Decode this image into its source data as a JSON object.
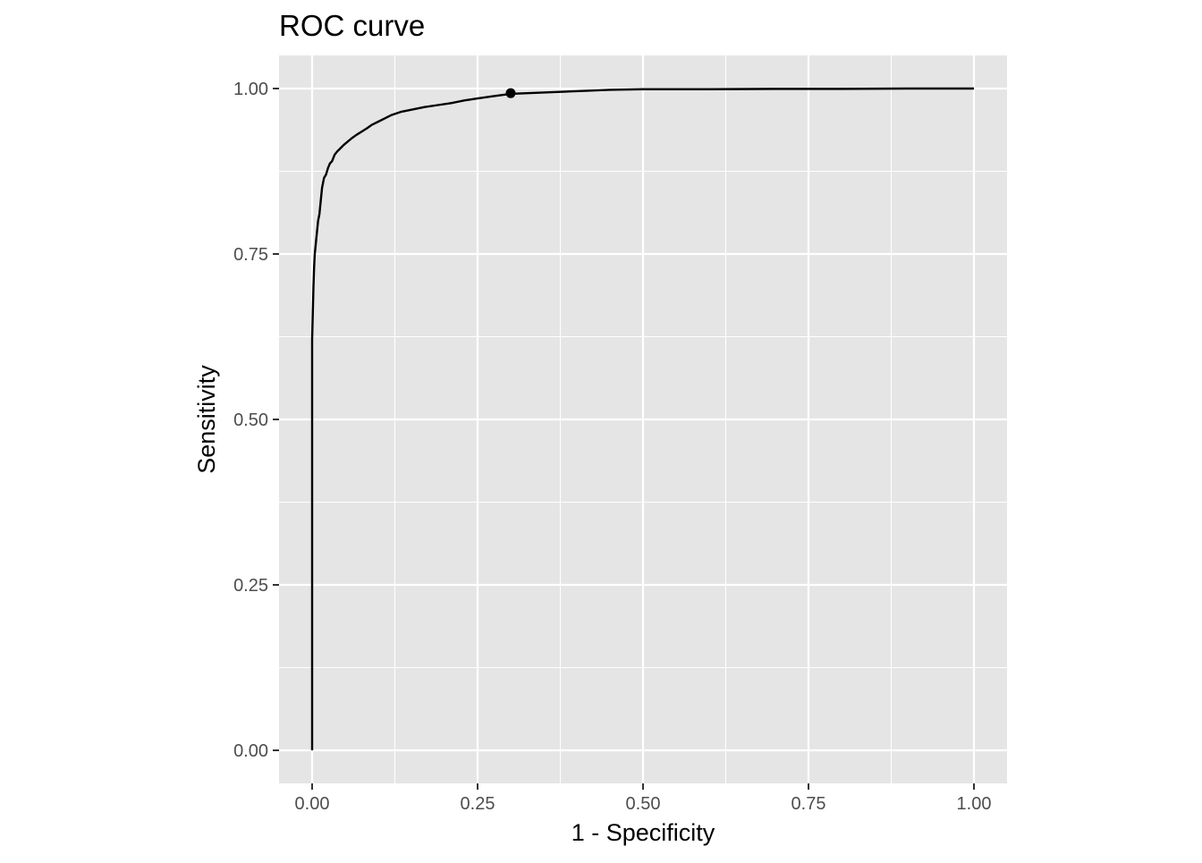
{
  "chart_data": {
    "type": "line",
    "title": "ROC curve",
    "xlabel": "1 - Specificity",
    "ylabel": "Sensitivity",
    "xlim": [
      -0.05,
      1.05
    ],
    "ylim": [
      -0.05,
      1.05
    ],
    "x_ticks": [
      0,
      0.25,
      0.5,
      0.75,
      1
    ],
    "x_tick_labels": [
      "0.00",
      "0.25",
      "0.50",
      "0.75",
      "1.00"
    ],
    "y_ticks": [
      0,
      0.25,
      0.5,
      0.75,
      1
    ],
    "y_tick_labels": [
      "0.00",
      "0.25",
      "0.50",
      "0.75",
      "1.00"
    ],
    "minor_x": [
      0.125,
      0.375,
      0.625,
      0.875
    ],
    "minor_y": [
      0.125,
      0.375,
      0.625,
      0.875
    ],
    "grid": true,
    "panel_background": "#e5e5e5",
    "grid_color": "#ffffff",
    "line_color": "#000000",
    "series": [
      {
        "x": [
          0,
          0,
          0.001,
          0.002,
          0.003,
          0.004,
          0.005,
          0.007,
          0.009,
          0.011,
          0.013,
          0.015,
          0.018,
          0.021,
          0.024,
          0.027,
          0.03,
          0.034,
          0.038,
          0.043,
          0.048,
          0.054,
          0.06,
          0.067,
          0.075,
          0.083,
          0.09,
          0.1,
          0.11,
          0.12,
          0.135,
          0.15,
          0.17,
          0.19,
          0.21,
          0.23,
          0.25,
          0.27,
          0.3,
          0.35,
          0.4,
          0.45,
          0.5,
          0.6,
          0.7,
          0.8,
          0.9,
          1
        ],
        "y": [
          0,
          0.62,
          0.66,
          0.7,
          0.73,
          0.75,
          0.76,
          0.78,
          0.8,
          0.81,
          0.83,
          0.85,
          0.865,
          0.87,
          0.88,
          0.887,
          0.89,
          0.9,
          0.905,
          0.91,
          0.915,
          0.92,
          0.925,
          0.93,
          0.935,
          0.94,
          0.945,
          0.95,
          0.955,
          0.96,
          0.965,
          0.968,
          0.972,
          0.975,
          0.978,
          0.982,
          0.985,
          0.988,
          0.992,
          0.994,
          0.996,
          0.998,
          0.999,
          0.999,
          0.9995,
          0.9995,
          1,
          1
        ]
      }
    ],
    "marked_point": {
      "x": 0.3,
      "y": 0.993
    }
  }
}
